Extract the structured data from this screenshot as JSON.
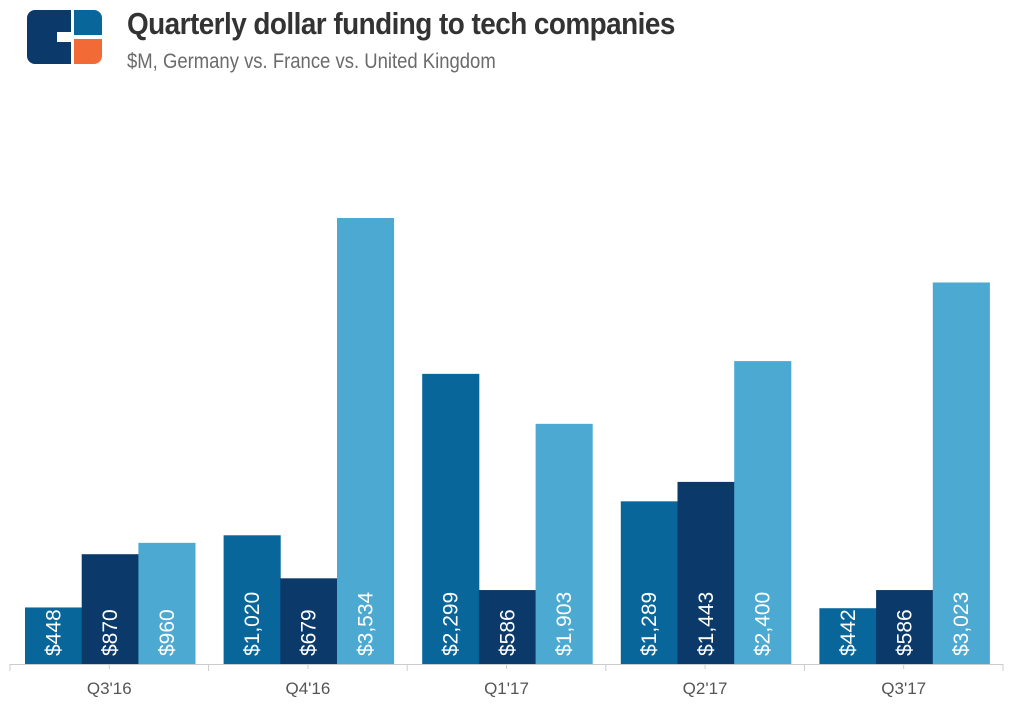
{
  "header": {
    "logo": "cb-insights-logo-icon",
    "title": "Quarterly dollar funding to tech companies",
    "subtitle": "$M, Germany vs. France vs. United Kingdom"
  },
  "colors": {
    "logo_dark": "#0B3A6A",
    "logo_blue": "#08669A",
    "logo_orange": "#F26A35"
  },
  "chart_data": {
    "type": "bar",
    "title": "Quarterly dollar funding to tech companies",
    "subtitle": "$M, Germany vs. France vs. United Kingdom",
    "xlabel": "",
    "ylabel": "",
    "categories": [
      "Q3'16",
      "Q4'16",
      "Q1'17",
      "Q2'17",
      "Q3'17"
    ],
    "series": [
      {
        "name": "Germany",
        "color": "#08669A",
        "values": [
          448,
          1020,
          2299,
          1289,
          442
        ],
        "labels": [
          "$448",
          "$1,020",
          "$2,299",
          "$1,289",
          "$442"
        ]
      },
      {
        "name": "France",
        "color": "#0B3A6A",
        "values": [
          870,
          679,
          586,
          1443,
          586
        ],
        "labels": [
          "$870",
          "$679",
          "$586",
          "$1,443",
          "$586"
        ]
      },
      {
        "name": "United Kingdom",
        "color": "#4CA9D2",
        "values": [
          960,
          3534,
          1903,
          2400,
          3023
        ],
        "labels": [
          "$960",
          "$3,534",
          "$1,903",
          "$2,400",
          "$3,023"
        ]
      }
    ],
    "ylim": [
      0,
      3534
    ],
    "grid": false,
    "legend": "none (series named in subtitle)",
    "axis_color": "#CCCCCC"
  }
}
